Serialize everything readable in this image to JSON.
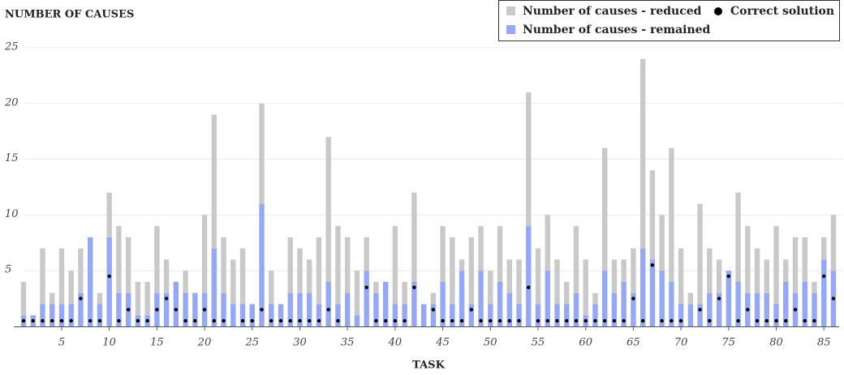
{
  "chart_data": {
    "type": "bar",
    "stacked": true,
    "title": "NUMBER OF CAUSES",
    "x_label": "TASK",
    "x": [
      1,
      2,
      3,
      4,
      5,
      6,
      7,
      8,
      9,
      10,
      11,
      12,
      13,
      14,
      15,
      16,
      17,
      18,
      19,
      20,
      21,
      22,
      23,
      24,
      25,
      26,
      27,
      28,
      29,
      30,
      31,
      32,
      33,
      34,
      35,
      36,
      37,
      38,
      39,
      40,
      41,
      42,
      43,
      44,
      45,
      46,
      47,
      48,
      49,
      50,
      51,
      52,
      53,
      54,
      55,
      56,
      57,
      58,
      59,
      60,
      61,
      62,
      63,
      64,
      65,
      66,
      67,
      68,
      69,
      70,
      71,
      72,
      73,
      74,
      75,
      76,
      77,
      78,
      79,
      80,
      81,
      82,
      83,
      84,
      85,
      86
    ],
    "series": [
      {
        "name": "Number of causes - remained",
        "color": "#95a8f5",
        "values": [
          1,
          1,
          2,
          2,
          2,
          2,
          3,
          8,
          2,
          8,
          3,
          3,
          1,
          1,
          3,
          3,
          4,
          3,
          3,
          3,
          7,
          3,
          2,
          2,
          2,
          11,
          2,
          2,
          3,
          3,
          3,
          2,
          4,
          2,
          3,
          1,
          5,
          3,
          4,
          2,
          2,
          4,
          2,
          2,
          4,
          2,
          5,
          2,
          5,
          2,
          4,
          3,
          2,
          9,
          2,
          5,
          2,
          2,
          3,
          1,
          2,
          5,
          3,
          4,
          3,
          7,
          6,
          5,
          4,
          2,
          2,
          2,
          3,
          3,
          5,
          4,
          3,
          3,
          3,
          2,
          4,
          3,
          4,
          3,
          6,
          5
        ]
      },
      {
        "name": "Number of causes - reduced",
        "color": "#c9c9c9",
        "values": [
          3,
          0,
          5,
          1,
          5,
          3,
          4,
          0,
          1,
          4,
          6,
          5,
          3,
          3,
          6,
          3,
          0,
          2,
          0,
          7,
          12,
          5,
          4,
          5,
          0,
          9,
          3,
          0,
          5,
          4,
          3,
          6,
          13,
          7,
          5,
          4,
          3,
          1,
          0,
          7,
          2,
          8,
          0,
          1,
          5,
          6,
          1,
          6,
          4,
          3,
          5,
          3,
          4,
          12,
          5,
          5,
          4,
          2,
          6,
          5,
          1,
          11,
          3,
          2,
          4,
          17,
          8,
          5,
          12,
          5,
          1,
          9,
          4,
          3,
          0,
          8,
          6,
          4,
          3,
          7,
          2,
          5,
          4,
          1,
          2,
          5
        ]
      },
      {
        "name": "Correct solution",
        "color": "#000000",
        "kind": "dot",
        "values": [
          0.5,
          0.5,
          0.5,
          0.5,
          0.5,
          0.5,
          2.5,
          0.5,
          0.5,
          4.5,
          0.5,
          1.5,
          0.5,
          0.5,
          1.5,
          2.5,
          1.5,
          0.5,
          0.5,
          1.5,
          0.5,
          0.5,
          null,
          0.5,
          0.5,
          1.5,
          0.5,
          0.5,
          0.5,
          0.5,
          0.5,
          0.5,
          1.5,
          0.5,
          null,
          null,
          3.5,
          0.5,
          0.5,
          0.5,
          0.5,
          3.5,
          null,
          1.5,
          0.5,
          0.5,
          0.5,
          1.5,
          0.5,
          0.5,
          0.5,
          0.5,
          0.5,
          3.5,
          0.5,
          0.5,
          0.5,
          0.5,
          0.5,
          0.5,
          0.5,
          0.5,
          0.5,
          0.5,
          2.5,
          0.5,
          5.5,
          0.5,
          0.5,
          0.5,
          null,
          1.5,
          0.5,
          2.5,
          4.5,
          0.5,
          1.5,
          0.5,
          0.5,
          0.5,
          0.5,
          1.5,
          0.5,
          0.5,
          4.5,
          2.5
        ]
      }
    ],
    "xlim": [
      0,
      87
    ],
    "xticks": [
      5,
      10,
      15,
      20,
      25,
      30,
      35,
      40,
      45,
      50,
      55,
      60,
      65,
      70,
      75,
      80,
      85
    ],
    "ylim": [
      0,
      25
    ],
    "yticks": [
      5,
      10,
      15,
      20,
      25
    ],
    "grid": true,
    "legend": "top-right"
  }
}
